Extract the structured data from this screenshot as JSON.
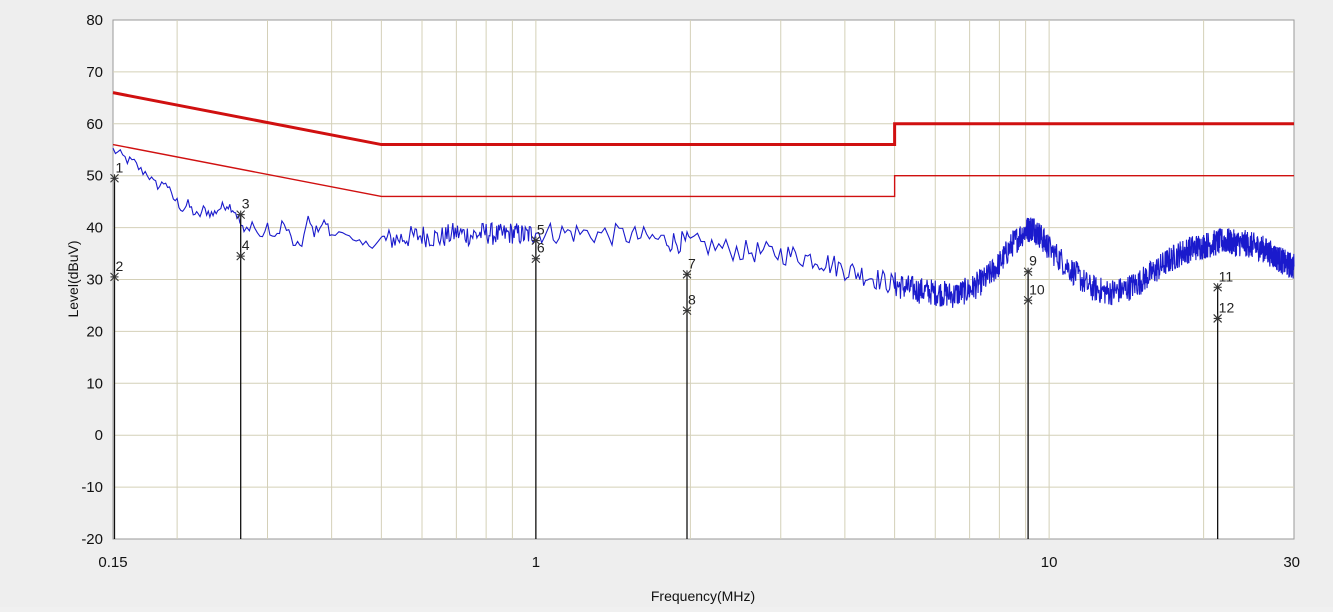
{
  "chart_data": {
    "type": "line",
    "title": "",
    "xlabel": "Frequency(MHz)",
    "ylabel": "Level(dBuV)",
    "x_scale": "log",
    "xlim": [
      0.15,
      30
    ],
    "ylim": [
      -20,
      80
    ],
    "x_ticks": [
      {
        "value": 0.15,
        "label": "0.15"
      },
      {
        "value": 1,
        "label": "1"
      },
      {
        "value": 10,
        "label": "10"
      },
      {
        "value": 30,
        "label": "30"
      }
    ],
    "y_ticks": [
      {
        "value": 80,
        "label": "80"
      },
      {
        "value": 70,
        "label": "70"
      },
      {
        "value": 60,
        "label": "60"
      },
      {
        "value": 50,
        "label": "50"
      },
      {
        "value": 40,
        "label": "40"
      },
      {
        "value": 30,
        "label": "30"
      },
      {
        "value": 20,
        "label": "20"
      },
      {
        "value": 10,
        "label": "10"
      },
      {
        "value": 0,
        "label": "0"
      },
      {
        "value": -10,
        "label": "-10"
      },
      {
        "value": -20,
        "label": "-20"
      }
    ],
    "grid": true,
    "colors": {
      "trace": "#1a1acc",
      "limit": "#d01010",
      "marker": "#111111",
      "grid": "#d4d0b8",
      "plot_bg": "#ffffff",
      "frame_bg": "#eeeeee"
    },
    "limit_lines": [
      {
        "style": "thick",
        "points": [
          [
            0.15,
            66
          ],
          [
            0.5,
            56
          ],
          [
            5,
            56
          ],
          [
            5,
            60
          ],
          [
            30,
            60
          ]
        ]
      },
      {
        "style": "thin",
        "points": [
          [
            0.15,
            56
          ],
          [
            0.5,
            46
          ],
          [
            5,
            46
          ],
          [
            5,
            50
          ],
          [
            30,
            50
          ]
        ]
      }
    ],
    "trace_points": [
      [
        0.15,
        55
      ],
      [
        0.155,
        54
      ],
      [
        0.16,
        53
      ],
      [
        0.165,
        52.5
      ],
      [
        0.17,
        51
      ],
      [
        0.175,
        50.5
      ],
      [
        0.18,
        48.5
      ],
      [
        0.185,
        48
      ],
      [
        0.19,
        49
      ],
      [
        0.195,
        46
      ],
      [
        0.2,
        45
      ],
      [
        0.205,
        43.5
      ],
      [
        0.21,
        44.5
      ],
      [
        0.215,
        43
      ],
      [
        0.22,
        42
      ],
      [
        0.225,
        43.5
      ],
      [
        0.23,
        43
      ],
      [
        0.235,
        42.5
      ],
      [
        0.24,
        43.5
      ],
      [
        0.245,
        44
      ],
      [
        0.25,
        44.5
      ],
      [
        0.255,
        44
      ],
      [
        0.26,
        43
      ],
      [
        0.265,
        41
      ],
      [
        0.27,
        39
      ],
      [
        0.28,
        41
      ],
      [
        0.29,
        38
      ],
      [
        0.3,
        40
      ],
      [
        0.31,
        37.5
      ],
      [
        0.32,
        41
      ],
      [
        0.33,
        39
      ],
      [
        0.34,
        36
      ],
      [
        0.35,
        37
      ],
      [
        0.36,
        41.5
      ],
      [
        0.37,
        39
      ],
      [
        0.38,
        40.5
      ],
      [
        0.39,
        41
      ],
      [
        0.4,
        38
      ],
      [
        0.42,
        40
      ],
      [
        0.44,
        37
      ],
      [
        0.46,
        36.5
      ],
      [
        0.48,
        37
      ],
      [
        0.5,
        37.5
      ],
      [
        0.55,
        38
      ],
      [
        0.6,
        38.5
      ],
      [
        0.65,
        38
      ],
      [
        0.7,
        39
      ],
      [
        0.75,
        38.5
      ],
      [
        0.8,
        39
      ],
      [
        0.85,
        38.5
      ],
      [
        0.9,
        39
      ],
      [
        0.95,
        38.5
      ],
      [
        1.0,
        39
      ],
      [
        1.2,
        39
      ],
      [
        1.5,
        38.5
      ],
      [
        1.8,
        37.5
      ],
      [
        2.0,
        37
      ],
      [
        2.5,
        35.5
      ],
      [
        3.0,
        35
      ],
      [
        3.5,
        34
      ],
      [
        4.0,
        32
      ],
      [
        4.5,
        30.5
      ],
      [
        5.0,
        29
      ],
      [
        5.5,
        28
      ],
      [
        6.0,
        27.5
      ],
      [
        6.5,
        27
      ],
      [
        7.0,
        28
      ],
      [
        7.5,
        30
      ],
      [
        8.0,
        33
      ],
      [
        8.5,
        37
      ],
      [
        9.0,
        39.5
      ],
      [
        9.3,
        40
      ],
      [
        9.6,
        38.5
      ],
      [
        10.0,
        36
      ],
      [
        11.0,
        32
      ],
      [
        12.0,
        28.5
      ],
      [
        13.0,
        27.5
      ],
      [
        14.0,
        28
      ],
      [
        15.0,
        29.5
      ],
      [
        16.0,
        31.5
      ],
      [
        17.0,
        33.5
      ],
      [
        18.0,
        35
      ],
      [
        19.0,
        36
      ],
      [
        20.0,
        36.5
      ],
      [
        21.0,
        37
      ],
      [
        22.0,
        37.5
      ],
      [
        23.0,
        37
      ],
      [
        24.0,
        37
      ],
      [
        25.0,
        36.5
      ],
      [
        26.0,
        36
      ],
      [
        27.0,
        35
      ],
      [
        28.0,
        34
      ],
      [
        29.0,
        33
      ],
      [
        30.0,
        32.5
      ]
    ],
    "markers": [
      {
        "label": "1",
        "x": 0.151,
        "y": 49.5
      },
      {
        "label": "2",
        "x": 0.151,
        "y": 30.5
      },
      {
        "label": "3",
        "x": 0.266,
        "y": 42.5
      },
      {
        "label": "4",
        "x": 0.266,
        "y": 34.5
      },
      {
        "label": "5",
        "x": 1.0,
        "y": 37.5
      },
      {
        "label": "6",
        "x": 1.0,
        "y": 34
      },
      {
        "label": "7",
        "x": 1.97,
        "y": 31
      },
      {
        "label": "8",
        "x": 1.97,
        "y": 24
      },
      {
        "label": "9",
        "x": 9.1,
        "y": 31.5
      },
      {
        "label": "10",
        "x": 9.1,
        "y": 26
      },
      {
        "label": "11",
        "x": 21.3,
        "y": 28.5
      },
      {
        "label": "12",
        "x": 21.3,
        "y": 22.5
      }
    ]
  }
}
